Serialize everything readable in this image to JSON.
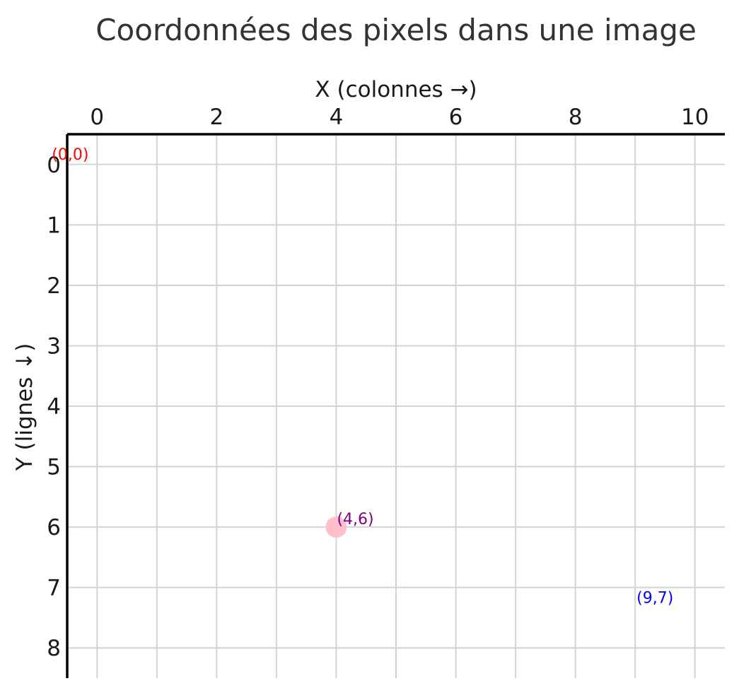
{
  "colors": {
    "grid": "#d3d3d3",
    "axis": "#000000",
    "origin_label": "#ff0000",
    "point_fill": "#ffc0cb",
    "point_label": "#800080",
    "corner_label": "#0000ff"
  },
  "chart_data": {
    "type": "scatter",
    "title": "Coordonnées des pixels dans une image",
    "xlabel": "X (colonnes →)",
    "ylabel": "Y (lignes ↓)",
    "xlim": [
      -0.5,
      10.5
    ],
    "ylim": [
      8.5,
      -0.5
    ],
    "x_axis_position": "top",
    "y_axis_inverted": true,
    "grid": true,
    "x_ticks": [
      0,
      2,
      4,
      6,
      8,
      10
    ],
    "y_ticks": [
      0,
      1,
      2,
      3,
      4,
      5,
      6,
      7,
      8
    ],
    "points": [
      {
        "x": 4,
        "y": 6,
        "label": "(4,6)"
      }
    ],
    "annotations": [
      {
        "text": "(0,0)",
        "x": 0,
        "y": 0,
        "color": "#ff0000"
      },
      {
        "text": "(4,6)",
        "x": 4,
        "y": 6,
        "color": "#800080"
      },
      {
        "text": "(9,7)",
        "x": 9,
        "y": 7,
        "color": "#0000ff"
      }
    ]
  }
}
